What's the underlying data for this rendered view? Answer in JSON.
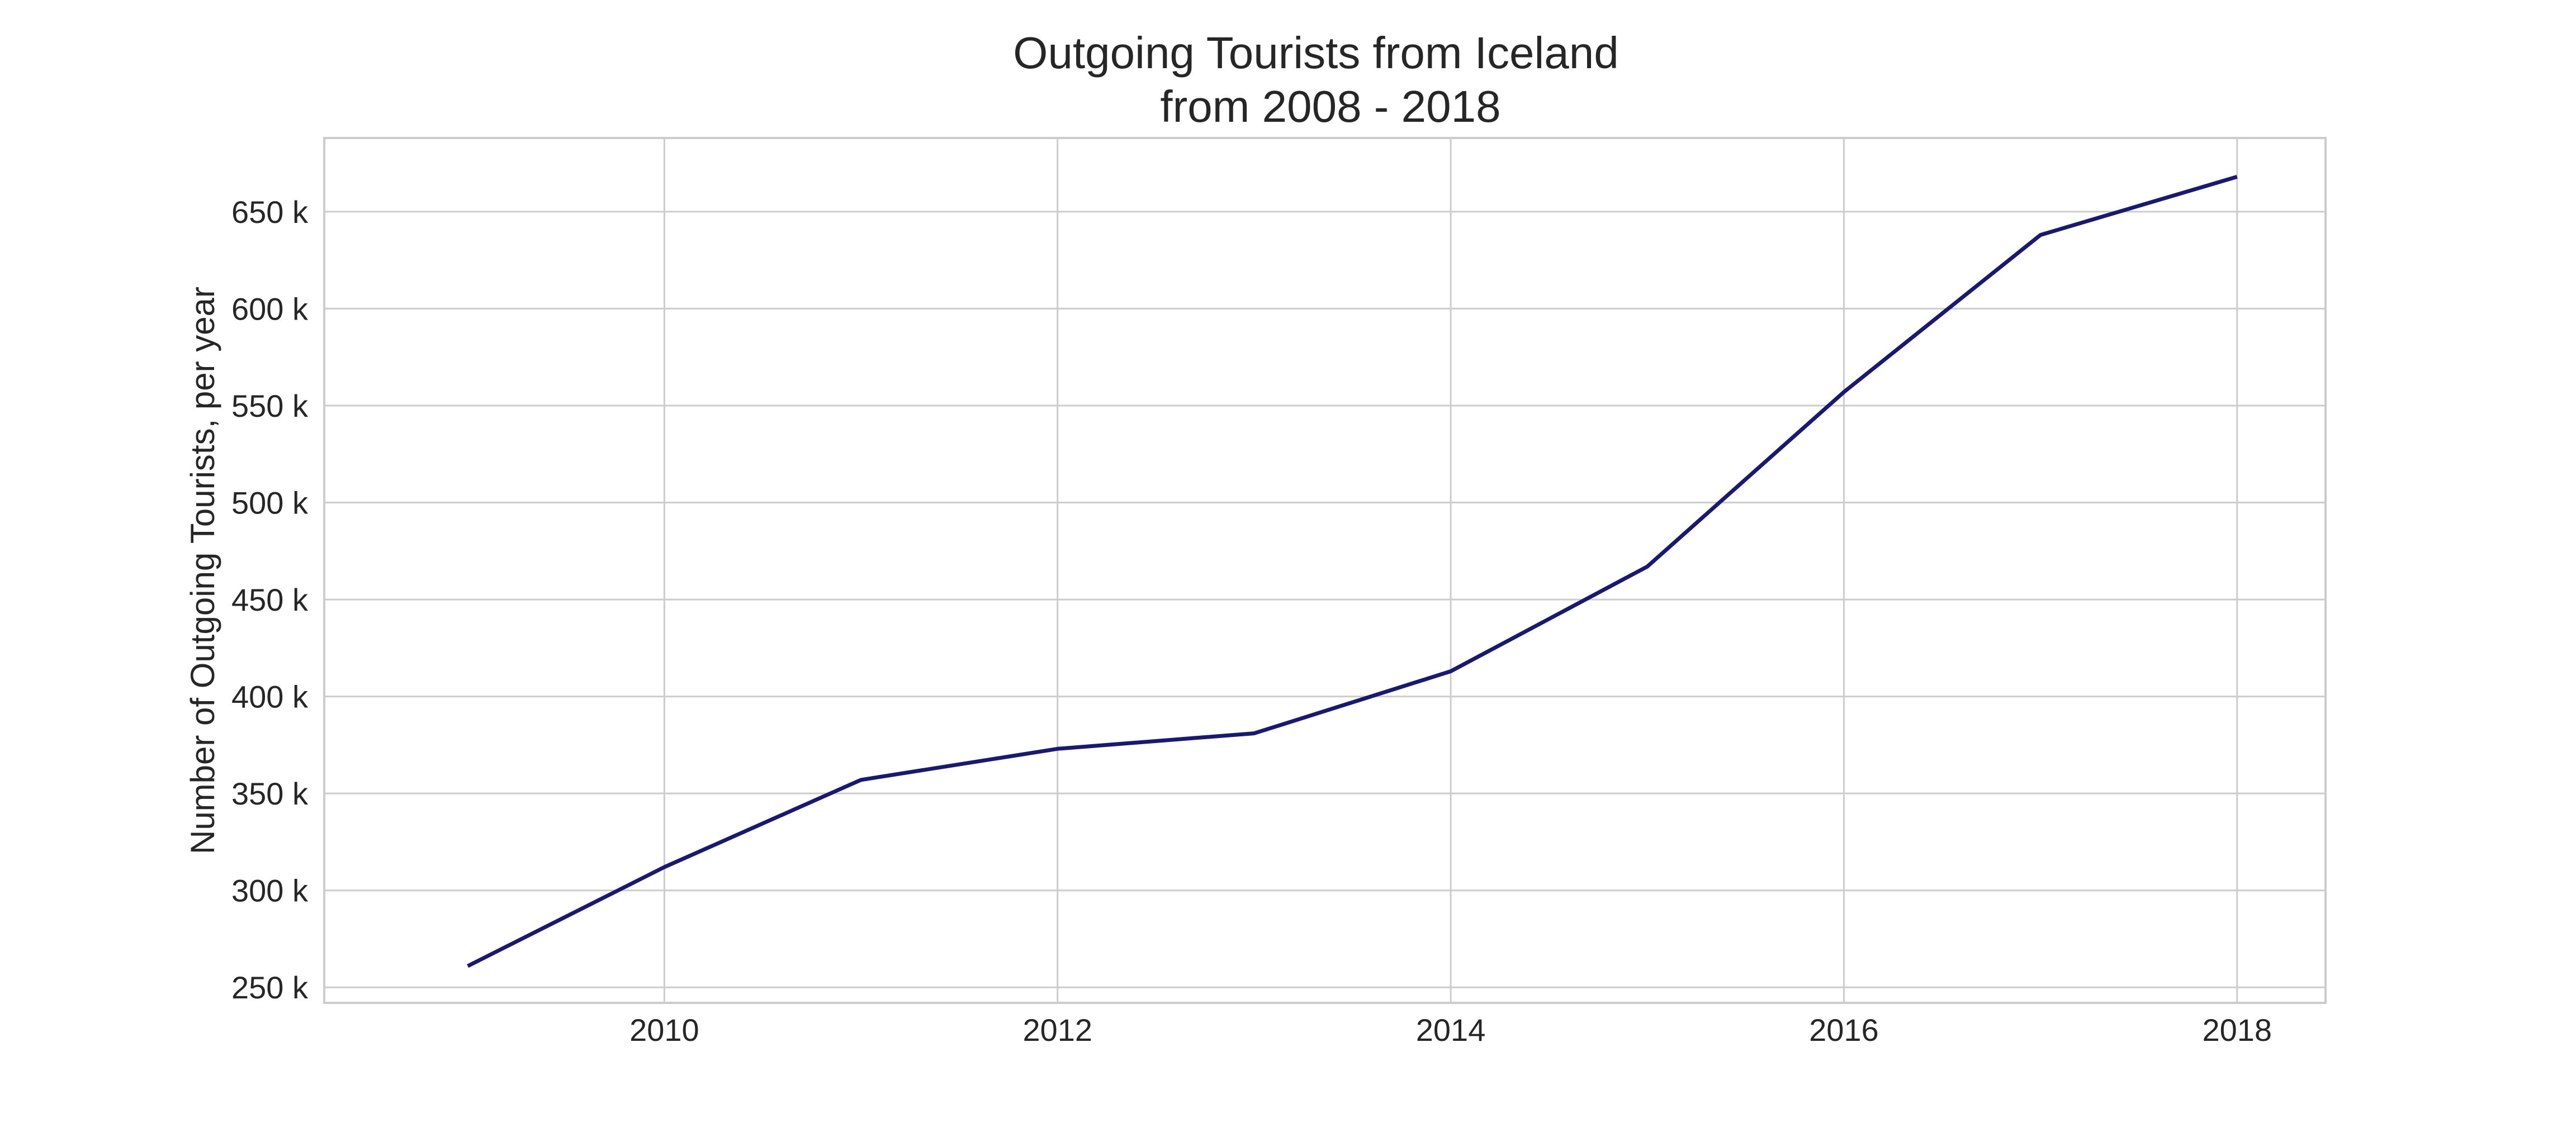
{
  "chart_data": {
    "type": "line",
    "title": "Outgoing Tourists from Iceland",
    "subtitle": "from 2008 - 2018",
    "xlabel": "",
    "ylabel": "Number of Outgoing Tourists, per year",
    "x": [
      2009,
      2010,
      2011,
      2012,
      2013,
      2014,
      2015,
      2016,
      2017,
      2018
    ],
    "series": [
      {
        "name": "",
        "values": [
          261000,
          312000,
          357000,
          373000,
          381000,
          413000,
          467000,
          557000,
          638000,
          668000
        ],
        "color": "#191970"
      }
    ],
    "xlim": [
      2008.27,
      2018.45
    ],
    "ylim": [
      242000,
      688000
    ],
    "xticks": [
      2010,
      2012,
      2014,
      2016,
      2018
    ],
    "xtick_labels": [
      "2010",
      "2012",
      "2014",
      "2016",
      "2018"
    ],
    "yticks": [
      250000,
      300000,
      350000,
      400000,
      450000,
      500000,
      550000,
      600000,
      650000
    ],
    "ytick_labels": [
      "250 k",
      "300 k",
      "350 k",
      "400 k",
      "450 k",
      "500 k",
      "550 k",
      "600 k",
      "650 k"
    ],
    "grid": true,
    "legend": "none",
    "colors": {
      "line": "#191970",
      "grid": "#cccccc",
      "frame": "#cccccc",
      "text": "#262626",
      "background": "#ffffff"
    }
  }
}
